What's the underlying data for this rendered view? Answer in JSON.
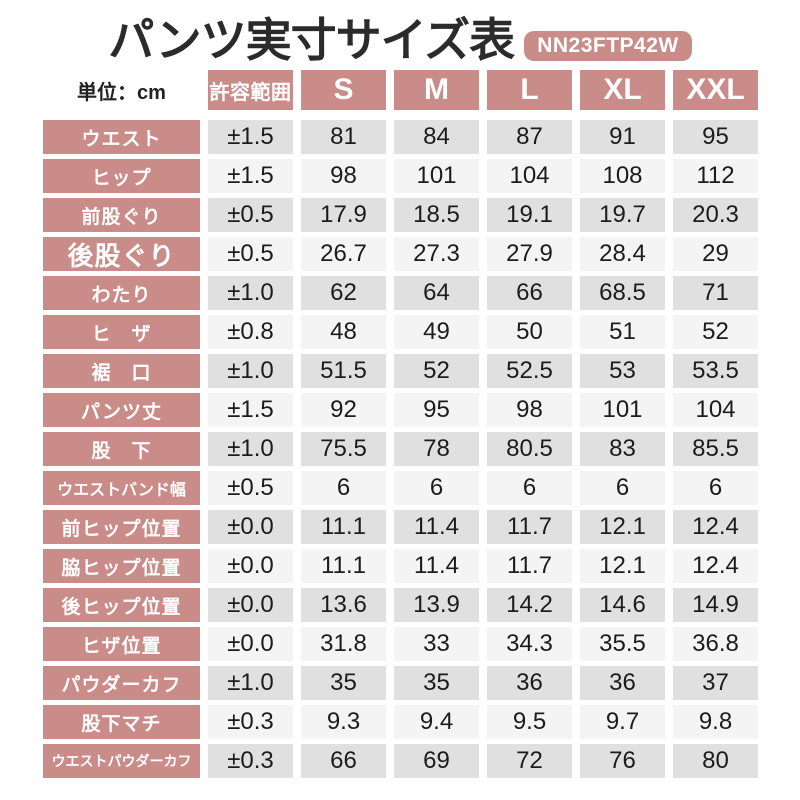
{
  "title": "パンツ実寸サイズ表",
  "badge": "NN23FTP42W",
  "unit_label": "単位：cm",
  "colors": {
    "accent_pink": "#ca8c88",
    "row_dark": "#e0e0e0",
    "row_light": "#f4f4f4",
    "text": "#1c1c1c"
  },
  "chart_data": {
    "type": "table",
    "title": "パンツ実寸サイズ表",
    "unit": "cm",
    "columns": [
      "許容範囲",
      "S",
      "M",
      "L",
      "XL",
      "XXL"
    ],
    "rows": [
      {
        "label": "ウエスト",
        "tolerance": "±1.5",
        "values": [
          "81",
          "84",
          "87",
          "91",
          "95"
        ]
      },
      {
        "label": "ヒップ",
        "tolerance": "±1.5",
        "values": [
          "98",
          "101",
          "104",
          "108",
          "112"
        ]
      },
      {
        "label": "前股ぐり",
        "tolerance": "±0.5",
        "values": [
          "17.9",
          "18.5",
          "19.1",
          "19.7",
          "20.3"
        ]
      },
      {
        "label": "後股ぐり",
        "tolerance": "±0.5",
        "values": [
          "26.7",
          "27.3",
          "27.9",
          "28.4",
          "29"
        ],
        "emphasis": "large"
      },
      {
        "label": "わたり",
        "tolerance": "±1.0",
        "values": [
          "62",
          "64",
          "66",
          "68.5",
          "71"
        ]
      },
      {
        "label": "ヒ　ザ",
        "tolerance": "±0.8",
        "values": [
          "48",
          "49",
          "50",
          "51",
          "52"
        ]
      },
      {
        "label": "裾　口",
        "tolerance": "±1.0",
        "values": [
          "51.5",
          "52",
          "52.5",
          "53",
          "53.5"
        ]
      },
      {
        "label": "パンツ丈",
        "tolerance": "±1.5",
        "values": [
          "92",
          "95",
          "98",
          "101",
          "104"
        ]
      },
      {
        "label": "股　下",
        "tolerance": "±1.0",
        "values": [
          "75.5",
          "78",
          "80.5",
          "83",
          "85.5"
        ]
      },
      {
        "label": "ウエストバンド幅",
        "tolerance": "±0.5",
        "values": [
          "6",
          "6",
          "6",
          "6",
          "6"
        ]
      },
      {
        "label": "前ヒップ位置",
        "tolerance": "±0.0",
        "values": [
          "11.1",
          "11.4",
          "11.7",
          "12.1",
          "12.4"
        ]
      },
      {
        "label": "脇ヒップ位置",
        "tolerance": "±0.0",
        "values": [
          "11.1",
          "11.4",
          "11.7",
          "12.1",
          "12.4"
        ]
      },
      {
        "label": "後ヒップ位置",
        "tolerance": "±0.0",
        "values": [
          "13.6",
          "13.9",
          "14.2",
          "14.6",
          "14.9"
        ]
      },
      {
        "label": "ヒザ位置",
        "tolerance": "±0.0",
        "values": [
          "31.8",
          "33",
          "34.3",
          "35.5",
          "36.8"
        ]
      },
      {
        "label": "パウダーカフ",
        "tolerance": "±1.0",
        "values": [
          "35",
          "35",
          "36",
          "36",
          "37"
        ]
      },
      {
        "label": "股下マチ",
        "tolerance": "±0.3",
        "values": [
          "9.3",
          "9.4",
          "9.5",
          "9.7",
          "9.8"
        ]
      },
      {
        "label": "ウエストパウダーカフ",
        "tolerance": "±0.3",
        "values": [
          "66",
          "69",
          "72",
          "76",
          "80"
        ]
      }
    ]
  }
}
